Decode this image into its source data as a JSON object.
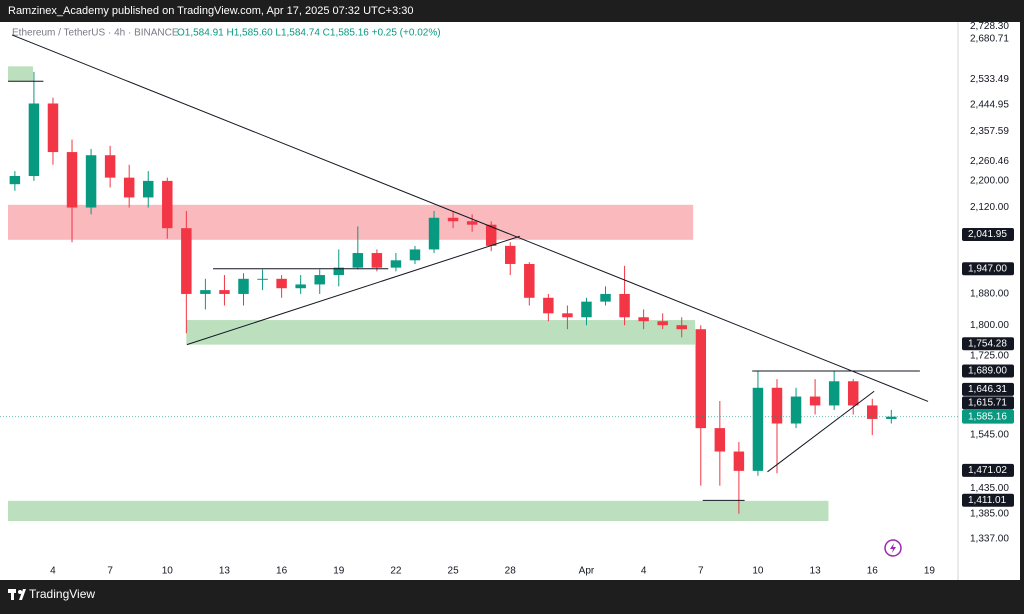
{
  "chart_data": {
    "type": "candlestick",
    "header": "Ramzinex_Academy published on TradingView.com, Apr 17, 2025 07:32 UTC+3:30",
    "title": "Ethereum / TetherUS · 4h · BINANCE",
    "subtitle": "O1,584.91 H1,585.60 L1,584.74 C1,585.16 +0.25 (+0.02%)",
    "brand": "TradingView",
    "log_scale": true,
    "grid": false,
    "up_color": "#089981",
    "down_color": "#f23645",
    "xlim": [
      1.22,
      51.5
    ],
    "ylim": [
      1263,
      2744
    ],
    "xticks": [
      4,
      7,
      10,
      13,
      16,
      19,
      22,
      25,
      28,
      {
        "value": 32,
        "label": "Apr"
      },
      {
        "value": 35,
        "label": "4"
      },
      {
        "value": 38,
        "label": "7"
      },
      {
        "value": 41,
        "label": "10"
      },
      {
        "value": 44,
        "label": "13"
      },
      {
        "value": 47,
        "label": "16"
      },
      {
        "value": 50,
        "label": "19"
      }
    ],
    "yticks": [
      {
        "value": 2728.3,
        "label": "2,728.30"
      },
      {
        "value": 2680.71,
        "label": "2,680.71"
      },
      {
        "value": 2533.49,
        "label": "2,533.49"
      },
      {
        "value": 2444.95,
        "label": "2,444.95"
      },
      {
        "value": 2357.59,
        "label": "2,357.59"
      },
      {
        "value": 2260.46,
        "label": "2,260.46"
      },
      {
        "value": 2200,
        "label": "2,200.00"
      },
      {
        "value": 2120,
        "label": "2,120.00"
      },
      {
        "value": 1880,
        "label": "1,880.00"
      },
      {
        "value": 1800,
        "label": "1,800.00"
      },
      {
        "value": 1725,
        "label": "1,725.00"
      },
      {
        "value": 1545,
        "label": "1,545.00"
      },
      {
        "value": 1435,
        "label": "1,435.00"
      },
      {
        "value": 1385,
        "label": "1,385.00"
      },
      {
        "value": 1337,
        "label": "1,337.00"
      }
    ],
    "price_labels": [
      {
        "value": 2041.95,
        "label": "2,041.95"
      },
      {
        "value": 1947,
        "label": "1,947.00"
      },
      {
        "value": 1754.28,
        "label": "1,754.28"
      },
      {
        "value": 1689,
        "label": "1,689.00"
      },
      {
        "value": 1646.31,
        "label": "1,646.31"
      },
      {
        "value": 1615.71,
        "label": "1,615.71"
      },
      {
        "value": 1471.02,
        "label": "1,471.02"
      },
      {
        "value": 1411.01,
        "label": "1,411.01"
      }
    ],
    "last_price": {
      "value": 1585.16,
      "label": "1,585.16",
      "color": "#089981"
    },
    "zones": [
      {
        "x": [
          1.64,
          2.95
        ],
        "from": 2580,
        "to": 2527,
        "color": "#a5d6a7"
      },
      {
        "x": [
          1.64,
          37.6
        ],
        "from": 2128,
        "to": 2027,
        "color": "#f7a1a7"
      },
      {
        "x": [
          11.0,
          37.7
        ],
        "from": 1813,
        "to": 1752,
        "color": "#a5d6a7"
      },
      {
        "x": [
          1.64,
          44.7
        ],
        "from": 1410,
        "to": 1371,
        "color": "#a5d6a7"
      }
    ],
    "lines": [
      {
        "x": [
          1.85,
          49.93
        ],
        "y": [
          2695,
          1619
        ]
      },
      {
        "x": [
          1.64,
          3.5
        ],
        "y": [
          2527,
          2527
        ]
      },
      {
        "x": [
          11.03,
          28.5
        ],
        "y": [
          1752,
          2037
        ]
      },
      {
        "x": [
          12.4,
          21.6
        ],
        "y": [
          1947,
          1947
        ]
      },
      {
        "x": [
          38.1,
          40.3
        ],
        "y": [
          1411,
          1411
        ]
      },
      {
        "x": [
          40.7,
          49.5
        ],
        "y": [
          1689,
          1689
        ]
      },
      {
        "x": [
          41.5,
          47.1
        ],
        "y": [
          1468,
          1642
        ]
      }
    ],
    "x": [
      2,
      3,
      4,
      5,
      6,
      7,
      8,
      9,
      10,
      11,
      12,
      13,
      14,
      15,
      16,
      17,
      18,
      19,
      20,
      21,
      22,
      23,
      24,
      25,
      26,
      27,
      28,
      29,
      30,
      31,
      32,
      33,
      34,
      35,
      36,
      37,
      38,
      39,
      40,
      41,
      42,
      43,
      44,
      45,
      46,
      47,
      48
    ],
    "open": [
      2190,
      2215,
      2450,
      2290,
      2120,
      2280,
      2210,
      2150,
      2200,
      2060,
      1880,
      1890,
      1880,
      1920,
      1920,
      1895,
      1905,
      1930,
      1950,
      1990,
      1950,
      1970,
      2000,
      2090,
      2080,
      2070,
      2010,
      1960,
      1870,
      1830,
      1820,
      1860,
      1880,
      1820,
      1810,
      1800,
      1790,
      1560,
      1510,
      1470,
      1650,
      1570,
      1630,
      1610,
      1665,
      1610,
      1580
    ],
    "high": [
      2230,
      2560,
      2470,
      2330,
      2300,
      2310,
      2250,
      2230,
      2210,
      2110,
      1920,
      1930,
      1935,
      1945,
      1930,
      1930,
      1945,
      2000,
      2065,
      2000,
      1990,
      2010,
      2110,
      2110,
      2100,
      2080,
      2020,
      1965,
      1880,
      1850,
      1870,
      1900,
      1955,
      1840,
      1830,
      1820,
      1800,
      1620,
      1530,
      1690,
      1670,
      1650,
      1670,
      1690,
      1670,
      1625,
      1600
    ],
    "low": [
      2170,
      2200,
      2250,
      2020,
      2100,
      2180,
      2120,
      2120,
      2030,
      1780,
      1840,
      1850,
      1850,
      1890,
      1870,
      1880,
      1880,
      1900,
      1945,
      1940,
      1940,
      1960,
      1990,
      2060,
      2050,
      1995,
      1930,
      1850,
      1810,
      1790,
      1800,
      1850,
      1800,
      1790,
      1790,
      1770,
      1440,
      1440,
      1385,
      1460,
      1465,
      1560,
      1590,
      1600,
      1590,
      1545,
      1570
    ],
    "close": [
      2215,
      2450,
      2290,
      2120,
      2280,
      2210,
      2150,
      2200,
      2060,
      1880,
      1890,
      1880,
      1920,
      1920,
      1895,
      1905,
      1930,
      1950,
      1990,
      1950,
      1970,
      2000,
      2090,
      2080,
      2070,
      2010,
      1960,
      1870,
      1830,
      1820,
      1860,
      1880,
      1820,
      1810,
      1800,
      1790,
      1560,
      1510,
      1470,
      1650,
      1570,
      1630,
      1610,
      1665,
      1610,
      1580,
      1585
    ]
  }
}
